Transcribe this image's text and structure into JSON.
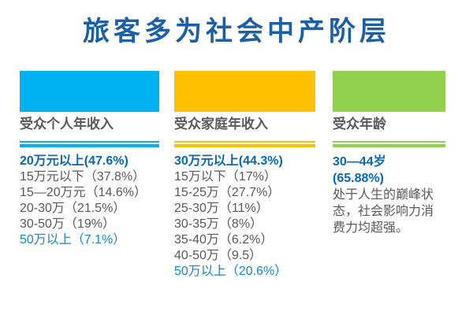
{
  "title": "旅客多为社会中产阶层",
  "palette": {
    "background": "#FFFFFF",
    "title_blue": "#1A5FA8",
    "primary_blue": "#0967B8",
    "highlight_blue": "#1586D0",
    "text_gray": "#595959",
    "accent_cyan": "#00B0F0",
    "accent_amber": "#FFC000",
    "accent_green": "#92D050"
  },
  "columns": [
    {
      "id": "personal-income",
      "accent": "#00B0F0",
      "label": "受众个人年收入",
      "items": [
        {
          "text": "20万元以上(47.6%)",
          "style": "primary"
        },
        {
          "text": "15万元以下（37.8%）",
          "style": "normal"
        },
        {
          "text": "15—20万元（14.6%）",
          "style": "normal"
        },
        {
          "text": "20-30万（21.5%）",
          "style": "normal"
        },
        {
          "text": "30-50万（19%）",
          "style": "normal"
        },
        {
          "text": "50万以上（7.1%）",
          "style": "highlight"
        }
      ]
    },
    {
      "id": "family-income",
      "accent": "#FFC000",
      "label": "受众家庭年收入",
      "items": [
        {
          "text": "30万元以上(44.3%)",
          "style": "primary"
        },
        {
          "text": "15万以下（17%）",
          "style": "normal"
        },
        {
          "text": "15-25万（27.7%）",
          "style": "normal"
        },
        {
          "text": "25-30万（11%）",
          "style": "normal"
        },
        {
          "text": "30-35万（8%）",
          "style": "normal"
        },
        {
          "text": "35-40万（6.2%）",
          "style": "normal"
        },
        {
          "text": "40-50万（9.5）",
          "style": "normal"
        },
        {
          "text": "50万以上（20.6%）",
          "style": "highlight"
        }
      ]
    },
    {
      "id": "age",
      "accent": "#92D050",
      "label": "受众年龄",
      "items": [
        {
          "text": "30—44岁",
          "style": "primary"
        },
        {
          "text": "(65.88%)",
          "style": "primary"
        },
        {
          "text": "处于人生的巅峰状态，社会影响力消费力均超强。",
          "style": "normal"
        }
      ]
    }
  ]
}
